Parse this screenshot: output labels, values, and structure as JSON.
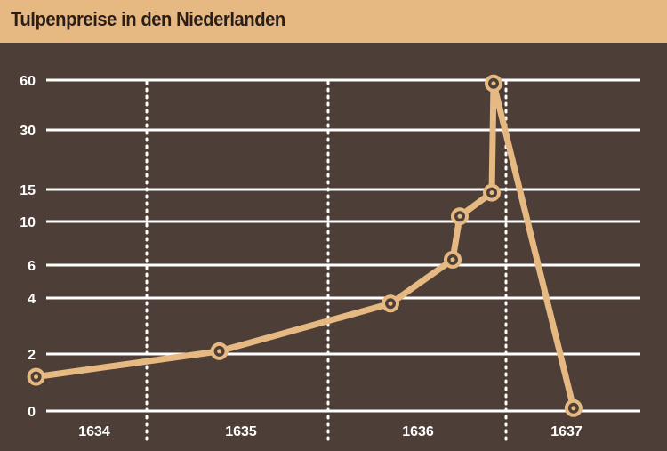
{
  "chart_data": {
    "type": "line",
    "title": "Tulpenpreise in den Niederlanden",
    "xlabel": "",
    "ylabel": "",
    "x_tick_labels": [
      "1634",
      "1635",
      "1636",
      "1637"
    ],
    "y_ticks": [
      0,
      2,
      4,
      6,
      10,
      15,
      30,
      60
    ],
    "ylim": [
      0,
      60
    ],
    "grid": true,
    "series": [
      {
        "x": [
          1634.05,
          1635.4,
          1636.35,
          1636.7,
          1636.74,
          1636.92,
          1636.93,
          1637.28
        ],
        "values": [
          1.2,
          2.1,
          3.8,
          6.5,
          10.8,
          14.5,
          58.0,
          0.1
        ]
      }
    ],
    "colors": {
      "background": "#4d3f37",
      "header": "#e6b983",
      "line": "#e6b983",
      "grid": "#ffffff"
    }
  }
}
